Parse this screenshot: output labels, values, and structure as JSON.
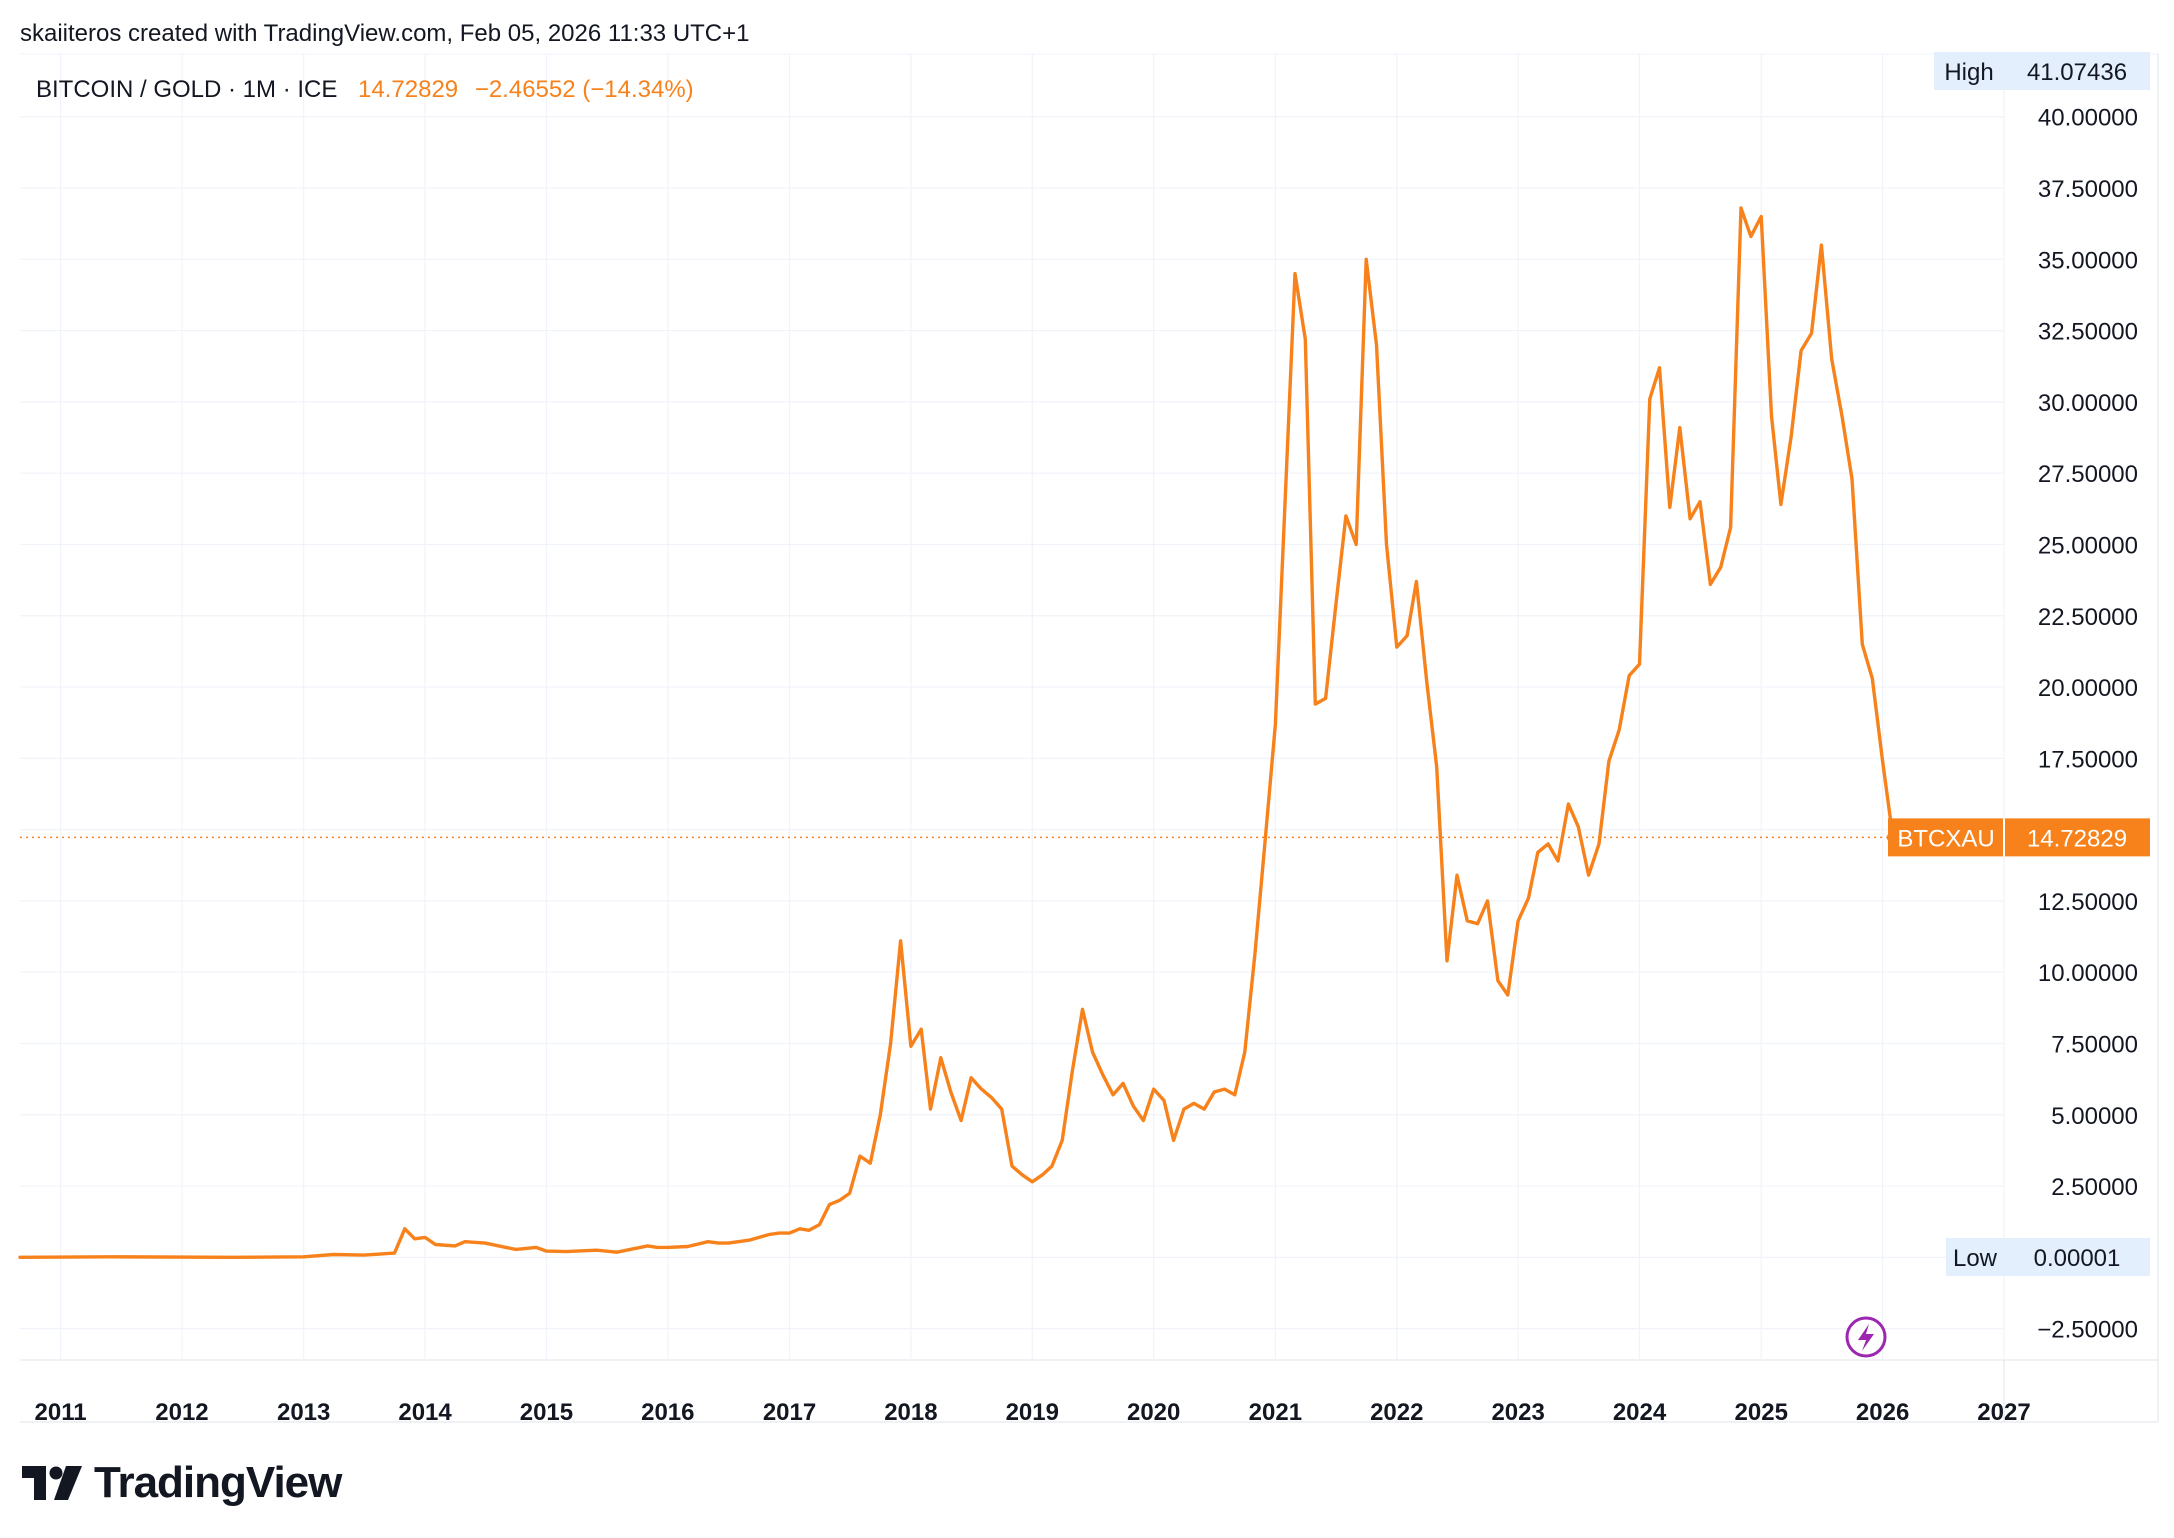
{
  "header": {
    "credit": "skaiiteros created with TradingView.com, Feb 05, 2026 11:33 UTC+1"
  },
  "legend": {
    "symbol": "BITCOIN / GOLD · 1M · ICE",
    "value": "14.72829",
    "change": "−2.46552 (−14.34%)"
  },
  "badges": {
    "high_label": "High",
    "high_value": "41.07436",
    "low_label": "Low",
    "low_value": "0.00001",
    "price_label": "BTCXAU",
    "price_value": "14.72829"
  },
  "logo": {
    "text": "TradingView",
    "icon": "tradingview-logo-icon"
  },
  "colors": {
    "line": "#f7821b",
    "grid": "#f0f3fa",
    "text": "#131722",
    "badge_bg": "#e3effd",
    "flash": "#9c27b0"
  },
  "chart_data": {
    "type": "line",
    "title": "BITCOIN / GOLD · 1M · ICE",
    "ylim": [
      -3.6,
      42.2
    ],
    "xlim": [
      "2010-09-01",
      "2027-01-01"
    ],
    "y_ticks": [
      {
        "v": 40,
        "label": "40.00000"
      },
      {
        "v": 37.5,
        "label": "37.50000"
      },
      {
        "v": 35,
        "label": "35.00000"
      },
      {
        "v": 32.5,
        "label": "32.50000"
      },
      {
        "v": 30,
        "label": "30.00000"
      },
      {
        "v": 27.5,
        "label": "27.50000"
      },
      {
        "v": 25,
        "label": "25.00000"
      },
      {
        "v": 22.5,
        "label": "22.50000"
      },
      {
        "v": 20,
        "label": "20.00000"
      },
      {
        "v": 17.5,
        "label": "17.50000"
      },
      {
        "v": 12.5,
        "label": "12.50000"
      },
      {
        "v": 10,
        "label": "10.00000"
      },
      {
        "v": 7.5,
        "label": "7.50000"
      },
      {
        "v": 5,
        "label": "5.00000"
      },
      {
        "v": 2.5,
        "label": "2.50000"
      },
      {
        "v": -2.5,
        "label": "−2.50000"
      }
    ],
    "x_ticks": [
      "2011",
      "2012",
      "2013",
      "2014",
      "2015",
      "2016",
      "2017",
      "2018",
      "2019",
      "2020",
      "2021",
      "2022",
      "2023",
      "2024",
      "2025",
      "2026",
      "2027"
    ],
    "last_value": 14.72829,
    "grid": true,
    "series": [
      {
        "x": [
          "2010-09",
          "2011-06",
          "2012-06",
          "2013-01",
          "2013-04",
          "2013-07",
          "2013-10",
          "2013-11",
          "2013-12",
          "2014-01",
          "2014-02",
          "2014-04",
          "2014-05",
          "2014-07",
          "2014-09",
          "2014-10",
          "2014-12",
          "2015-01",
          "2015-03",
          "2015-06",
          "2015-08",
          "2015-11",
          "2015-12",
          "2016-01",
          "2016-03",
          "2016-05",
          "2016-06",
          "2016-07",
          "2016-09",
          "2016-11",
          "2016-12",
          "2017-01",
          "2017-02",
          "2017-03",
          "2017-04",
          "2017-05",
          "2017-06",
          "2017-07",
          "2017-08",
          "2017-09",
          "2017-10",
          "2017-11",
          "2017-12",
          "2018-01",
          "2018-02",
          "2018-03",
          "2018-04",
          "2018-05",
          "2018-06",
          "2018-07",
          "2018-08",
          "2018-09",
          "2018-10",
          "2018-11",
          "2018-12",
          "2019-01",
          "2019-02",
          "2019-03",
          "2019-04",
          "2019-05",
          "2019-06",
          "2019-07",
          "2019-08",
          "2019-09",
          "2019-10",
          "2019-11",
          "2019-12",
          "2020-01",
          "2020-02",
          "2020-03",
          "2020-04",
          "2020-05",
          "2020-06",
          "2020-07",
          "2020-08",
          "2020-09",
          "2020-10",
          "2020-11",
          "2020-12",
          "2021-01",
          "2021-02",
          "2021-03",
          "2021-04",
          "2021-05",
          "2021-06",
          "2021-07",
          "2021-08",
          "2021-09",
          "2021-10",
          "2021-11",
          "2021-12",
          "2022-01",
          "2022-02",
          "2022-03",
          "2022-04",
          "2022-05",
          "2022-06",
          "2022-07",
          "2022-08",
          "2022-09",
          "2022-10",
          "2022-11",
          "2022-12",
          "2023-01",
          "2023-02",
          "2023-03",
          "2023-04",
          "2023-05",
          "2023-06",
          "2023-07",
          "2023-08",
          "2023-09",
          "2023-10",
          "2023-11",
          "2023-12",
          "2024-01",
          "2024-02",
          "2024-03",
          "2024-04",
          "2024-05",
          "2024-06",
          "2024-07",
          "2024-08",
          "2024-09",
          "2024-10",
          "2024-11",
          "2024-12",
          "2025-01",
          "2025-02",
          "2025-03",
          "2025-04",
          "2025-05",
          "2025-06",
          "2025-07",
          "2025-08",
          "2025-09",
          "2025-10",
          "2025-11",
          "2025-12",
          "2026-01",
          "2026-02"
        ],
        "values": [
          0,
          0.02,
          0,
          0.02,
          0.1,
          0.08,
          0.15,
          1.0,
          0.65,
          0.7,
          0.45,
          0.4,
          0.55,
          0.5,
          0.35,
          0.28,
          0.35,
          0.22,
          0.2,
          0.25,
          0.18,
          0.4,
          0.35,
          0.35,
          0.38,
          0.55,
          0.5,
          0.5,
          0.6,
          0.8,
          0.85,
          0.85,
          1.0,
          0.95,
          1.15,
          1.85,
          2.0,
          2.25,
          3.55,
          3.3,
          5.0,
          7.5,
          11.1,
          7.4,
          8.0,
          5.2,
          7.0,
          5.8,
          4.8,
          6.3,
          5.9,
          5.6,
          5.2,
          3.2,
          2.9,
          2.65,
          2.9,
          3.2,
          4.1,
          6.5,
          8.7,
          7.2,
          6.4,
          5.7,
          6.1,
          5.3,
          4.8,
          5.9,
          5.5,
          4.1,
          5.2,
          5.4,
          5.2,
          5.8,
          5.9,
          5.7,
          7.2,
          10.7,
          14.6,
          18.7,
          27.0,
          34.5,
          32.2,
          19.4,
          19.6,
          22.8,
          26.0,
          25.0,
          35.0,
          32.0,
          25.0,
          21.4,
          21.8,
          23.7,
          20.2,
          17.2,
          10.4,
          13.4,
          11.8,
          11.7,
          12.5,
          9.7,
          9.2,
          11.8,
          12.6,
          14.2,
          14.5,
          13.9,
          15.9,
          15.1,
          13.4,
          14.5,
          17.4,
          18.5,
          20.4,
          20.8,
          30.1,
          31.2,
          26.3,
          29.1,
          25.9,
          26.5,
          23.6,
          24.2,
          25.6,
          36.8,
          35.8,
          36.5,
          29.5,
          26.4,
          28.8,
          31.8,
          32.4,
          35.5,
          31.5,
          29.5,
          27.3,
          21.5,
          20.3,
          17.4,
          14.72829
        ]
      }
    ]
  }
}
